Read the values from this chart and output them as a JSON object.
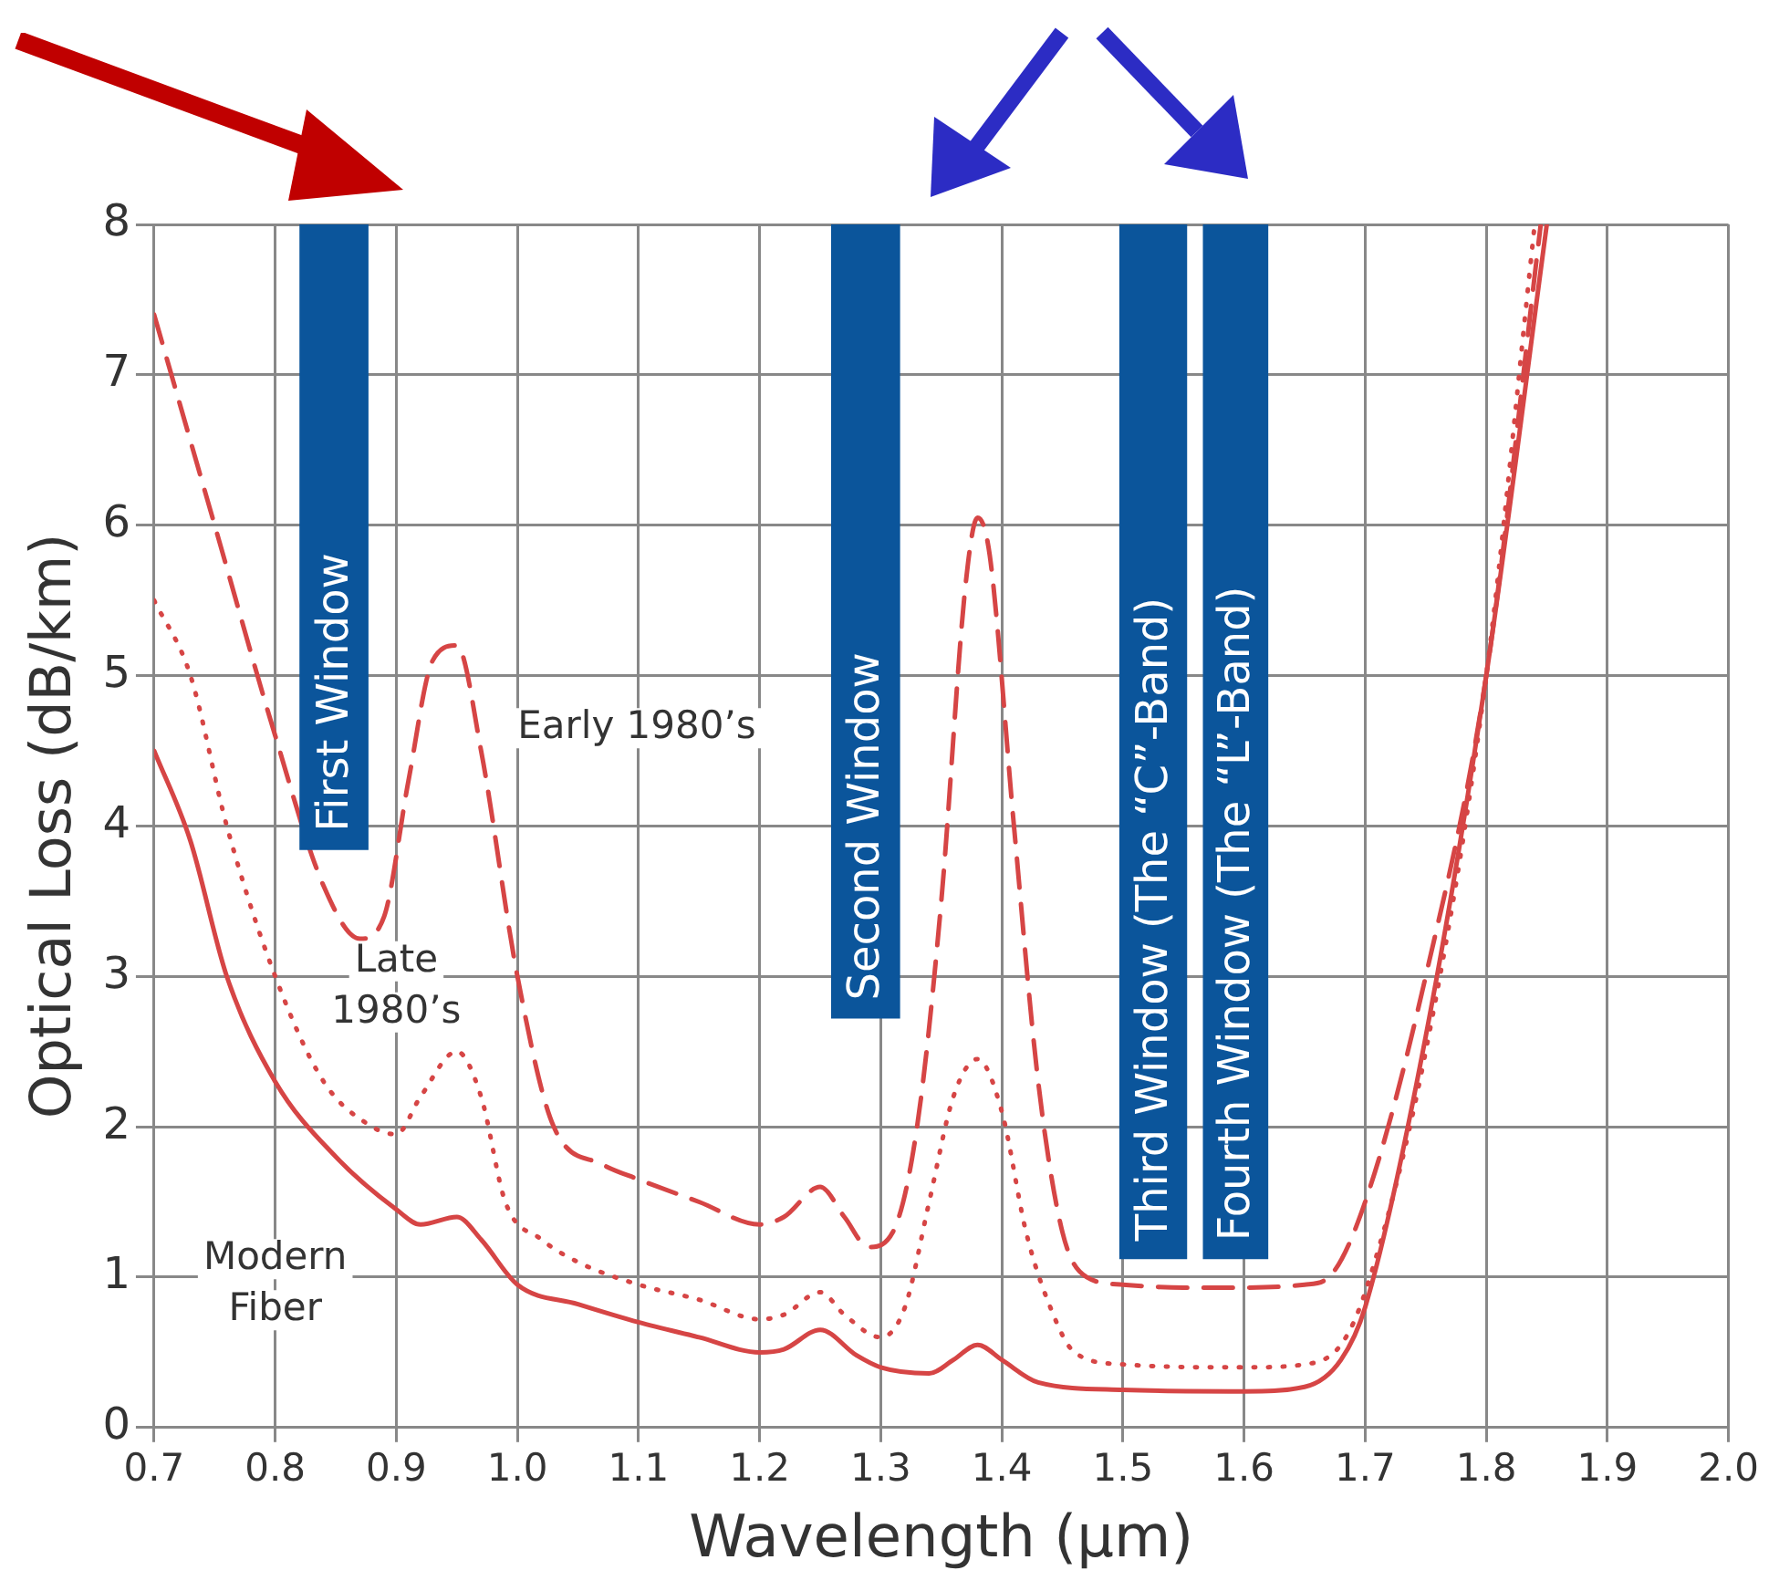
{
  "chart_data": {
    "type": "line",
    "xlabel": "Wavelength (μm)",
    "ylabel": "Optical Loss (dB/km)",
    "xlim": [
      0.7,
      2.0
    ],
    "xticks": [
      0.7,
      0.8,
      0.9,
      {
        "value": 1.0,
        "label": "1.0"
      },
      1.1,
      1.2,
      1.3,
      1.4,
      1.5,
      1.6,
      1.7,
      1.8,
      1.9,
      {
        "value": 2.0,
        "label": "2.0"
      }
    ],
    "ylim": [
      0,
      8
    ],
    "yticks": [
      0,
      1,
      2,
      3,
      4,
      5,
      6,
      7,
      8
    ],
    "grid": true,
    "legend": false,
    "marker": "none",
    "bands": [
      {
        "axis": "x",
        "from": 0.82,
        "to": 0.877,
        "label": "First Window",
        "color": "#0b559b"
      },
      {
        "axis": "x",
        "from": 1.259,
        "to": 1.316,
        "label": "Second Window",
        "color": "#0b559b"
      },
      {
        "axis": "x",
        "from": 1.497,
        "to": 1.553,
        "label": "Third Window (The “C”-Band)",
        "color": "#0b559b"
      },
      {
        "axis": "x",
        "from": 1.566,
        "to": 1.62,
        "label": "Fourth Window (The “L”-Band)",
        "color": "#0b559b"
      }
    ],
    "series": [
      {
        "name": "Early 1980’s",
        "color": "#d64545",
        "line_style": "dashed",
        "x": [
          0.7,
          0.75,
          0.8,
          0.84,
          0.87,
          0.89,
          0.91,
          0.93,
          0.95,
          0.97,
          1.0,
          1.03,
          1.07,
          1.1,
          1.15,
          1.2,
          1.22,
          1.25,
          1.27,
          1.29,
          1.31,
          1.33,
          1.35,
          1.37,
          1.38,
          1.39,
          1.41,
          1.43,
          1.45,
          1.47,
          1.5,
          1.55,
          1.6,
          1.65,
          1.67,
          1.7,
          1.75,
          1.8,
          1.845
        ],
        "values": [
          7.4,
          6.0,
          4.6,
          3.6,
          3.25,
          3.4,
          4.3,
          5.1,
          5.2,
          4.5,
          3.0,
          2.0,
          1.75,
          1.65,
          1.5,
          1.35,
          1.4,
          1.6,
          1.4,
          1.2,
          1.3,
          2.0,
          3.5,
          5.6,
          6.05,
          5.8,
          4.0,
          2.3,
          1.3,
          1.0,
          0.95,
          0.93,
          0.93,
          0.95,
          1.0,
          1.5,
          3.0,
          5.0,
          8.0
        ]
      },
      {
        "name": "Late 1980’s",
        "color": "#d64545",
        "line_style": "dotted",
        "x": [
          0.7,
          0.73,
          0.76,
          0.8,
          0.84,
          0.88,
          0.9,
          0.92,
          0.95,
          0.97,
          0.99,
          1.02,
          1.05,
          1.1,
          1.15,
          1.2,
          1.22,
          1.25,
          1.27,
          1.3,
          1.32,
          1.34,
          1.36,
          1.38,
          1.4,
          1.42,
          1.44,
          1.46,
          1.5,
          1.6,
          1.65,
          1.68,
          1.7,
          1.75,
          1.8,
          1.84
        ],
        "values": [
          5.5,
          5.0,
          4.0,
          3.0,
          2.3,
          2.0,
          1.95,
          2.2,
          2.5,
          2.2,
          1.5,
          1.25,
          1.1,
          0.95,
          0.85,
          0.72,
          0.75,
          0.9,
          0.75,
          0.6,
          0.8,
          1.5,
          2.2,
          2.45,
          2.1,
          1.3,
          0.8,
          0.5,
          0.42,
          0.4,
          0.42,
          0.55,
          0.9,
          2.5,
          5.0,
          8.0
        ]
      },
      {
        "name": "Modern Fiber",
        "color": "#d64545",
        "line_style": "solid",
        "x": [
          0.7,
          0.73,
          0.76,
          0.8,
          0.85,
          0.9,
          0.92,
          0.95,
          0.97,
          1.0,
          1.05,
          1.1,
          1.15,
          1.2,
          1.22,
          1.25,
          1.28,
          1.3,
          1.34,
          1.36,
          1.38,
          1.4,
          1.43,
          1.5,
          1.6,
          1.65,
          1.68,
          1.7,
          1.75,
          1.8,
          1.85
        ],
        "values": [
          4.5,
          3.9,
          3.0,
          2.3,
          1.8,
          1.45,
          1.35,
          1.4,
          1.25,
          0.95,
          0.82,
          0.7,
          0.6,
          0.5,
          0.52,
          0.65,
          0.48,
          0.4,
          0.36,
          0.45,
          0.55,
          0.45,
          0.3,
          0.25,
          0.24,
          0.27,
          0.45,
          0.8,
          2.6,
          5.0,
          8.0
        ]
      }
    ]
  }
}
